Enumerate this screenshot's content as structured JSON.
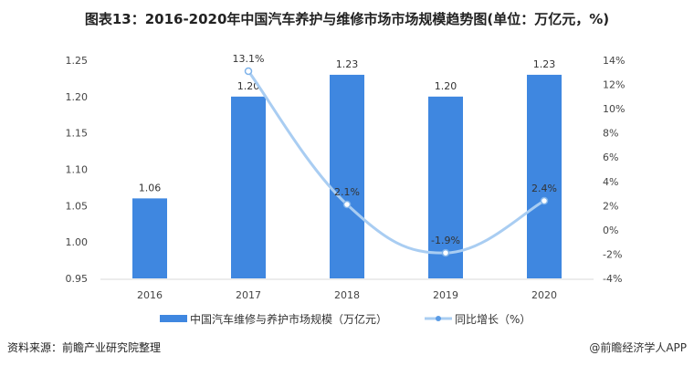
{
  "title": "图表13：2016-2020年中国汽车养护与维修市场市场规模趋势图(单位：万亿元，%)",
  "source": "资料来源：前瞻产业研究院整理",
  "credit": "@前瞻经济学人APP",
  "chart_data": {
    "type": "bar+line",
    "categories": [
      "2016",
      "2017",
      "2018",
      "2019",
      "2020"
    ],
    "series": [
      {
        "name": "中国汽车维修与养护市场规模（万亿元）",
        "type": "bar",
        "axis": "left",
        "values": [
          1.06,
          1.2,
          1.23,
          1.2,
          1.23
        ],
        "labels": [
          "1.06",
          "1.20",
          "1.23",
          "1.20",
          "1.23"
        ],
        "color": "#3f87e0"
      },
      {
        "name": "同比增长（%）",
        "type": "line",
        "axis": "right",
        "values": [
          null,
          13.1,
          2.1,
          -1.9,
          2.4
        ],
        "labels": [
          "",
          "13.1%",
          "2.1%",
          "-1.9%",
          "2.4%"
        ],
        "color": "#a9cdf2"
      }
    ],
    "left_axis": {
      "ylim": [
        0.95,
        1.25
      ],
      "ticks": [
        "0.95",
        "1.00",
        "1.05",
        "1.10",
        "1.15",
        "1.20",
        "1.25"
      ]
    },
    "right_axis": {
      "ylim": [
        -4,
        14
      ],
      "ticks": [
        "-4%",
        "-2%",
        "0%",
        "2%",
        "4%",
        "6%",
        "8%",
        "10%",
        "12%",
        "14%"
      ]
    },
    "grid": false,
    "legend": "bottom"
  }
}
